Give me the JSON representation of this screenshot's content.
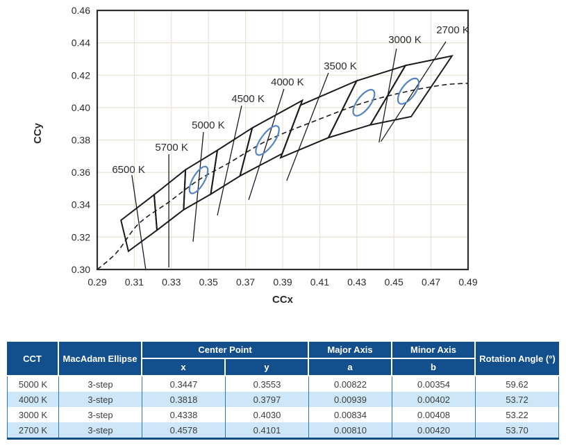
{
  "chart_data": {
    "type": "scatter",
    "title": "",
    "xlabel": "CCx",
    "ylabel": "CCy",
    "xlim": [
      0.29,
      0.49
    ],
    "ylim": [
      0.3,
      0.46
    ],
    "xticks": [
      "0.29",
      "0.31",
      "0.33",
      "0.35",
      "0.37",
      "0.39",
      "0.41",
      "0.43",
      "0.45",
      "0.47",
      "0.49"
    ],
    "yticks": [
      "0.30",
      "0.32",
      "0.34",
      "0.36",
      "0.38",
      "0.40",
      "0.42",
      "0.44",
      "0.46"
    ],
    "grid": true,
    "legend": "none",
    "colors": {
      "grid": "#e9e4d2",
      "plot_border": "#2e2e2e",
      "line": "#1b1b1b",
      "ellipse": "#5583c2",
      "text": "#2b2b2b"
    },
    "locus_dashed": [
      [
        0.29,
        0.3
      ],
      [
        0.3005,
        0.3105
      ],
      [
        0.3123,
        0.3282
      ],
      [
        0.3287,
        0.3417
      ],
      [
        0.3447,
        0.3553
      ],
      [
        0.3611,
        0.3658
      ],
      [
        0.3818,
        0.3797
      ],
      [
        0.4073,
        0.3917
      ],
      [
        0.4338,
        0.403
      ],
      [
        0.4578,
        0.4101
      ],
      [
        0.477,
        0.414
      ],
      [
        0.49,
        0.415
      ]
    ],
    "cct_bins": [
      {
        "cct": "2700 K",
        "corners": [
          [
            0.4813,
            0.4319
          ],
          [
            0.4562,
            0.426
          ],
          [
            0.4373,
            0.3893
          ],
          [
            0.4593,
            0.3944
          ]
        ]
      },
      {
        "cct": "3000 K",
        "corners": [
          [
            0.4562,
            0.426
          ],
          [
            0.4299,
            0.4165
          ],
          [
            0.4147,
            0.3814
          ],
          [
            0.4373,
            0.3893
          ]
        ]
      },
      {
        "cct": "3500 K",
        "corners": [
          [
            0.4299,
            0.4165
          ],
          [
            0.3996,
            0.4015
          ],
          [
            0.3889,
            0.369
          ],
          [
            0.4147,
            0.3814
          ]
        ]
      },
      {
        "cct": "4000 K",
        "corners": [
          [
            0.4006,
            0.4044
          ],
          [
            0.3736,
            0.3874
          ],
          [
            0.367,
            0.3578
          ],
          [
            0.3898,
            0.3716
          ]
        ]
      },
      {
        "cct": "4500 K",
        "corners": [
          [
            0.3736,
            0.3874
          ],
          [
            0.3548,
            0.3736
          ],
          [
            0.3512,
            0.3465
          ],
          [
            0.367,
            0.3578
          ]
        ]
      },
      {
        "cct": "5000 K",
        "corners": [
          [
            0.3548,
            0.3736
          ],
          [
            0.3376,
            0.3616
          ],
          [
            0.3366,
            0.3369
          ],
          [
            0.3512,
            0.3465
          ]
        ]
      },
      {
        "cct": "5700 K",
        "corners": [
          [
            0.3376,
            0.3616
          ],
          [
            0.3207,
            0.3462
          ],
          [
            0.3222,
            0.3243
          ],
          [
            0.3366,
            0.3369
          ]
        ]
      },
      {
        "cct": "6500 K",
        "corners": [
          [
            0.3207,
            0.3462
          ],
          [
            0.3028,
            0.3304
          ],
          [
            0.3068,
            0.3113
          ],
          [
            0.3222,
            0.3243
          ]
        ]
      }
    ],
    "ellipses": [
      {
        "cct": "5000 K",
        "center": [
          0.3447,
          0.3553
        ],
        "a": 0.00822,
        "b": 0.00354,
        "rotation_deg": 59.62
      },
      {
        "cct": "4000 K",
        "center": [
          0.3818,
          0.3797
        ],
        "a": 0.00939,
        "b": 0.00402,
        "rotation_deg": 53.72
      },
      {
        "cct": "3000 K",
        "center": [
          0.4338,
          0.403
        ],
        "a": 0.00834,
        "b": 0.00408,
        "rotation_deg": 53.22
      },
      {
        "cct": "2700 K",
        "center": [
          0.4578,
          0.4101
        ],
        "a": 0.0081,
        "b": 0.0042,
        "rotation_deg": 53.7
      }
    ],
    "annotations": [
      {
        "text": "2700 K",
        "label_pos": [
          0.4818,
          0.448
        ],
        "line": [
          [
            0.478,
            0.4407
          ],
          [
            0.443,
            0.379
          ]
        ]
      },
      {
        "text": "3000 K",
        "label_pos": [
          0.4559,
          0.442
        ],
        "line": [
          [
            0.4514,
            0.4364
          ],
          [
            0.442,
            0.3785
          ]
        ]
      },
      {
        "text": "3500 K",
        "label_pos": [
          0.4211,
          0.4257
        ],
        "line": [
          [
            0.4147,
            0.4214
          ],
          [
            0.3922,
            0.3549
          ]
        ]
      },
      {
        "text": "4000 K",
        "label_pos": [
          0.3926,
          0.4158
        ],
        "line": [
          [
            0.3907,
            0.4115
          ],
          [
            0.3717,
            0.343
          ]
        ]
      },
      {
        "text": "4500 K",
        "label_pos": [
          0.3713,
          0.4055
        ],
        "line": [
          [
            0.3679,
            0.4012
          ],
          [
            0.3548,
            0.3334
          ]
        ]
      },
      {
        "text": "5000 K",
        "label_pos": [
          0.3499,
          0.3892
        ],
        "line": [
          [
            0.3473,
            0.3849
          ],
          [
            0.3417,
            0.3172
          ]
        ]
      },
      {
        "text": "5700 K",
        "label_pos": [
          0.3301,
          0.3755
        ],
        "line": [
          [
            0.3286,
            0.3712
          ],
          [
            0.3286,
            0.3013
          ]
        ]
      },
      {
        "text": "6500 K",
        "label_pos": [
          0.3069,
          0.3618
        ],
        "line": [
          [
            0.3087,
            0.3583
          ],
          [
            0.3162,
            0.2995
          ]
        ]
      }
    ]
  },
  "table": {
    "header": {
      "cct": "CCT",
      "macadam": "MacAdam Ellipse",
      "center_point": "Center Point",
      "x": "x",
      "y": "y",
      "major_axis": "Major Axis",
      "a": "a",
      "minor_axis": "Minor Axis",
      "b": "b",
      "rotation": "Rotation Angle (°)"
    },
    "rows": [
      {
        "cct": "5000 K",
        "macadam": "3-step",
        "x": "0.3447",
        "y": "0.3553",
        "a": "0.00822",
        "b": "0.00354",
        "rotation": "59.62"
      },
      {
        "cct": "4000 K",
        "macadam": "3-step",
        "x": "0.3818",
        "y": "0.3797",
        "a": "0.00939",
        "b": "0.00402",
        "rotation": "53.72"
      },
      {
        "cct": "3000 K",
        "macadam": "3-step",
        "x": "0.4338",
        "y": "0.4030",
        "a": "0.00834",
        "b": "0.00408",
        "rotation": "53.22"
      },
      {
        "cct": "2700 K",
        "macadam": "3-step",
        "x": "0.4578",
        "y": "0.4101",
        "a": "0.00810",
        "b": "0.00420",
        "rotation": "53.70"
      }
    ]
  }
}
